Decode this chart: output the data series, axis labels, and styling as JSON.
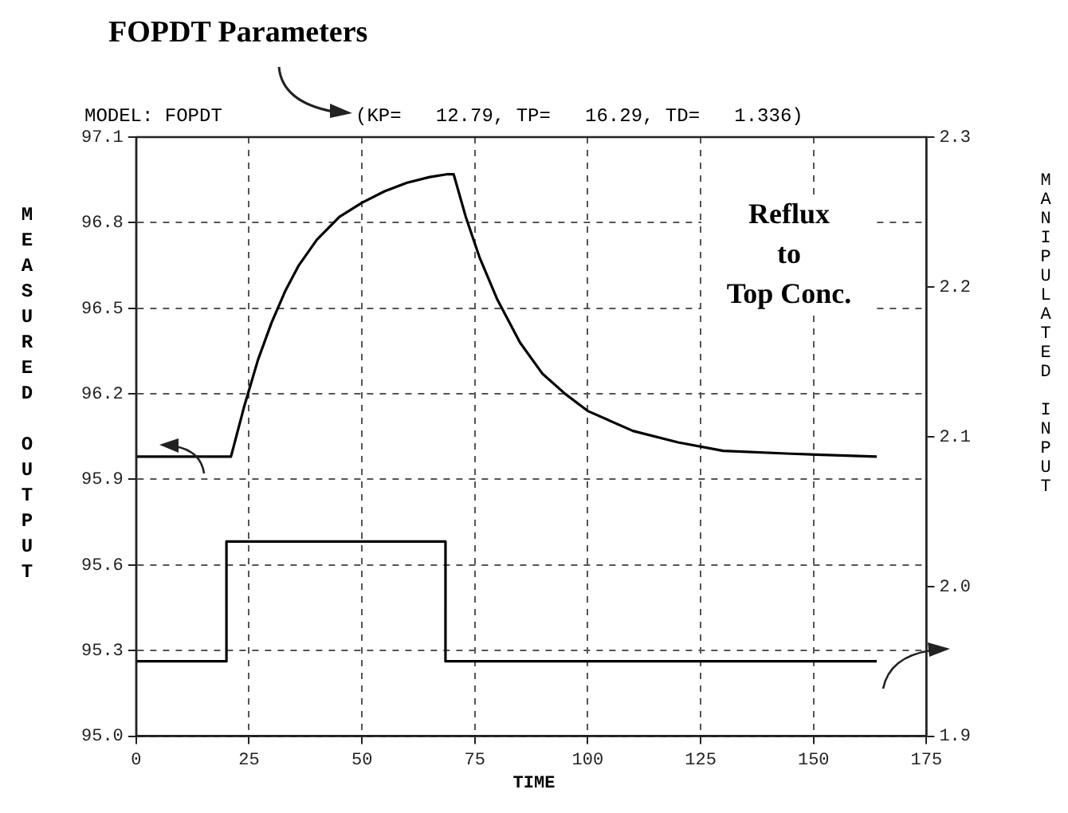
{
  "chart_data": {
    "type": "line",
    "annotations": [
      "FOPDT Parameters",
      "MODEL: FOPDT",
      "(KP=   12.79, TP=   16.29, TD=   1.336)",
      "Reflux\nto\nTop Conc."
    ],
    "xlabel": "TIME",
    "ylabel": "MEASURED OUTPUT",
    "y2label": "MANIPULATED INPUT",
    "series": [
      {
        "color": "#000000",
        "x": [
          0,
          21,
          24,
          27,
          30,
          33,
          36,
          40,
          45,
          50,
          55,
          60,
          65,
          69,
          70.3,
          73,
          76,
          80,
          85,
          90,
          95,
          100,
          110,
          120,
          130,
          145,
          164
        ],
        "values": [
          95.98,
          95.98,
          96.16,
          96.32,
          96.45,
          96.56,
          96.65,
          96.74,
          96.82,
          96.87,
          96.91,
          96.94,
          96.96,
          96.97,
          96.97,
          96.82,
          96.68,
          96.53,
          96.38,
          96.27,
          96.2,
          96.14,
          96.07,
          96.03,
          96.0,
          95.99,
          95.98
        ]
      },
      {
        "type": "step",
        "axis": "y2",
        "color": "#000000",
        "x": [
          0,
          20,
          68.5,
          164
        ],
        "values": [
          1.95,
          2.03,
          1.95,
          1.95
        ]
      }
    ],
    "xlim": [
      0,
      175
    ],
    "xticks": [
      0,
      25,
      50,
      75,
      100,
      125,
      150,
      175
    ],
    "ylim": [
      95.0,
      97.1
    ],
    "yticks": [
      {
        "value": 95,
        "label": "95.0"
      },
      95.3,
      95.6,
      95.9,
      96.2,
      96.5,
      96.8,
      97.1
    ],
    "y2lim": [
      1.9,
      2.3
    ],
    "y2ticks": [
      1.9,
      {
        "value": 2,
        "label": "2.0"
      },
      2.1,
      2.2,
      2.3
    ],
    "grid": true,
    "legend": false,
    "marker": "none",
    "line_style": "solid"
  }
}
